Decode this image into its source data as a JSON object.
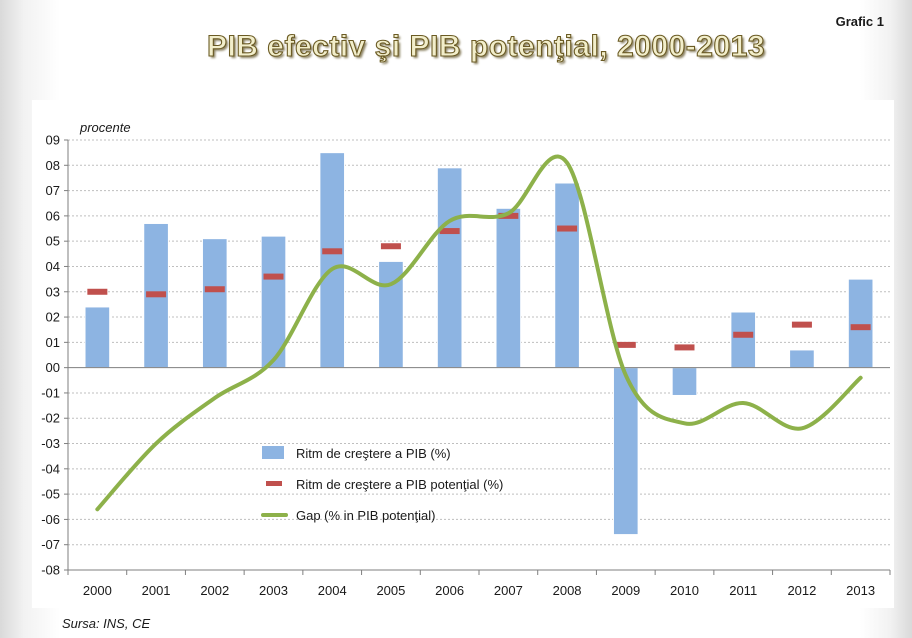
{
  "header": {
    "label": "Grafic 1",
    "title": "PIB efectiv şi PIB potenţial, 2000-2013"
  },
  "footer": {
    "source": "Sursa: INS, CE"
  },
  "chart_data": {
    "type": "bar",
    "title": "PIB efectiv şi PIB potenţial, 2000-2013",
    "ylabel": "procente",
    "xlabel": "",
    "ylim": [
      -8,
      9
    ],
    "yticks": [
      {
        "value": 9,
        "label": "09"
      },
      {
        "value": 8,
        "label": "08"
      },
      {
        "value": 7,
        "label": "07"
      },
      {
        "value": 6,
        "label": "06"
      },
      {
        "value": 5,
        "label": "05"
      },
      {
        "value": 4,
        "label": "04"
      },
      {
        "value": 3,
        "label": "03"
      },
      {
        "value": 2,
        "label": "02"
      },
      {
        "value": 1,
        "label": "01"
      },
      {
        "value": 0,
        "label": "00"
      },
      {
        "value": -1,
        "label": "-01"
      },
      {
        "value": -2,
        "label": "-02"
      },
      {
        "value": -3,
        "label": "-03"
      },
      {
        "value": -4,
        "label": "-04"
      },
      {
        "value": -5,
        "label": "-05"
      },
      {
        "value": -6,
        "label": "-06"
      },
      {
        "value": -7,
        "label": "-07"
      },
      {
        "value": -8,
        "label": "-08"
      }
    ],
    "grid": true,
    "categories": [
      "2000",
      "2001",
      "2002",
      "2003",
      "2004",
      "2005",
      "2006",
      "2007",
      "2008",
      "2009",
      "2010",
      "2011",
      "2012",
      "2013"
    ],
    "series": [
      {
        "name": "Ritm de creştere a PIB (%)",
        "kind": "bar",
        "color": "#8db4e2",
        "values": [
          2.4,
          5.7,
          5.1,
          5.2,
          8.5,
          4.2,
          7.9,
          6.3,
          7.3,
          -6.6,
          -1.1,
          2.2,
          0.7,
          3.5
        ]
      },
      {
        "name": "Ritm de creştere a PIB potenţial (%)",
        "kind": "marker",
        "color": "#c0504d",
        "values": [
          3.0,
          2.9,
          3.1,
          3.6,
          4.6,
          4.8,
          5.4,
          6.0,
          5.5,
          0.9,
          0.8,
          1.3,
          1.7,
          1.6
        ]
      },
      {
        "name": "Gap (% in PIB potenţial)",
        "kind": "line",
        "color": "#8db14a",
        "values": [
          -5.6,
          -3.0,
          -1.2,
          0.3,
          3.9,
          3.3,
          5.8,
          6.1,
          8.1,
          -0.3,
          -2.2,
          -1.4,
          -2.4,
          -0.4
        ]
      }
    ],
    "legend_position": "bottom-left"
  }
}
